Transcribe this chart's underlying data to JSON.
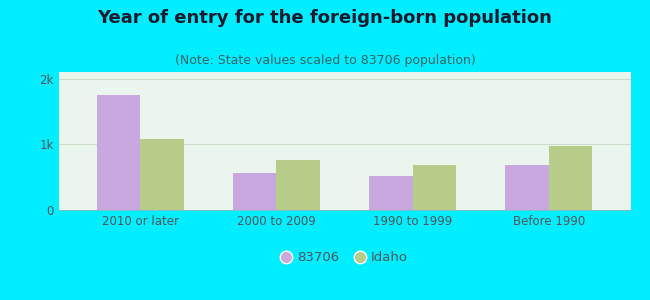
{
  "title": "Year of entry for the foreign-born population",
  "subtitle": "(Note: State values scaled to 83706 population)",
  "categories": [
    "2010 or later",
    "2000 to 2009",
    "1990 to 1999",
    "Before 1990"
  ],
  "values_83706": [
    1750,
    560,
    510,
    680
  ],
  "values_idaho": [
    1080,
    760,
    680,
    980
  ],
  "color_83706": "#c9a8e0",
  "color_idaho": "#b8cc8a",
  "background_outer": "#00eeff",
  "background_plot_top": "#eaf5ee",
  "background_plot_bottom": "#d8eed8",
  "ylim": [
    0,
    2100
  ],
  "yticks": [
    0,
    1000,
    2000
  ],
  "ytick_labels": [
    "0",
    "1k",
    "2k"
  ],
  "legend_label_83706": "83706",
  "legend_label_idaho": "Idaho",
  "bar_width": 0.32,
  "title_fontsize": 13,
  "subtitle_fontsize": 9,
  "title_color": "#1a1a2e",
  "subtitle_color": "#336666",
  "tick_color": "#555555"
}
